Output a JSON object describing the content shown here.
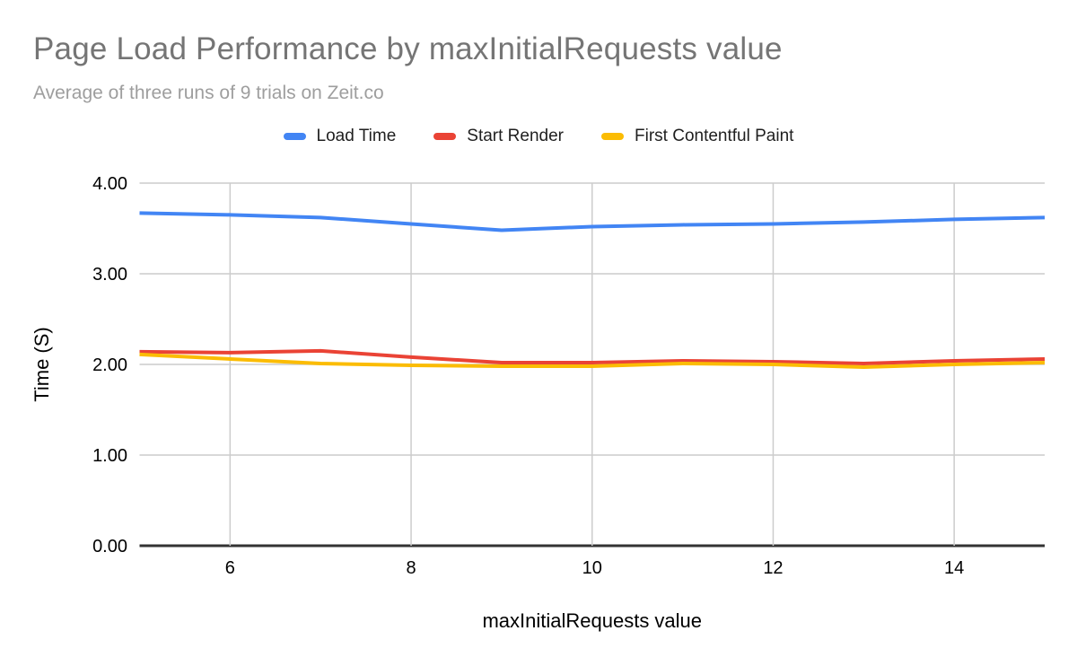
{
  "chart_data": {
    "type": "line",
    "title": "Page Load Performance by maxInitialRequests value",
    "subtitle": "Average of three runs of 9 trials on Zeit.co",
    "xlabel": "maxInitialRequests value",
    "ylabel": "Time (S)",
    "x": [
      5,
      6,
      7,
      8,
      9,
      10,
      11,
      12,
      13,
      14,
      15
    ],
    "series": [
      {
        "name": "Load Time",
        "color": "#4285F4",
        "values": [
          3.67,
          3.65,
          3.62,
          3.55,
          3.48,
          3.52,
          3.54,
          3.55,
          3.57,
          3.6,
          3.62
        ]
      },
      {
        "name": "Start Render",
        "color": "#EA4335",
        "values": [
          2.14,
          2.13,
          2.15,
          2.08,
          2.02,
          2.02,
          2.04,
          2.03,
          2.01,
          2.04,
          2.06
        ]
      },
      {
        "name": "First Contentful Paint",
        "color": "#FBBC04",
        "values": [
          2.11,
          2.06,
          2.01,
          1.99,
          1.98,
          1.98,
          2.01,
          2.0,
          1.97,
          2.0,
          2.02
        ]
      }
    ],
    "xlim": [
      5,
      15
    ],
    "ylim": [
      0,
      4
    ],
    "x_ticks": [
      6,
      8,
      10,
      12,
      14
    ],
    "y_ticks": [
      0,
      1,
      2,
      3,
      4
    ],
    "y_tick_decimals": 2,
    "grid": true,
    "legend_position": "top",
    "colors": {
      "background": "#ffffff",
      "gridline": "#cccccc",
      "baseline_axis": "#333333",
      "tick_text": "#000000",
      "axis_title_text": "#000000",
      "title_text": "#757575",
      "subtitle_text": "#9e9e9e",
      "legend_text": "#1f1f1f"
    }
  }
}
